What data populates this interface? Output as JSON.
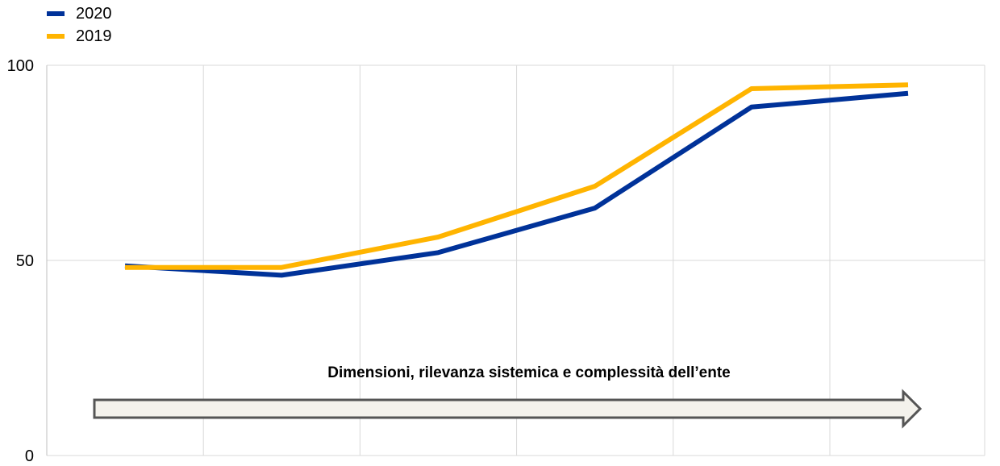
{
  "chart_data": {
    "type": "line",
    "x": [
      1,
      2,
      3,
      4,
      5,
      6
    ],
    "series": [
      {
        "name": "2020",
        "color": "#003299",
        "values": [
          48.6,
          46.2,
          52.0,
          63.4,
          89.3,
          92.8
        ]
      },
      {
        "name": "2019",
        "color": "#FFB400",
        "values": [
          48.2,
          48.2,
          56.0,
          69.0,
          94.0,
          95.0
        ]
      }
    ],
    "ylim": [
      0,
      100
    ],
    "y_ticks": [
      0,
      50,
      100
    ],
    "grid": true,
    "legend_position": "top-left",
    "annotation": {
      "text": "Dimensioni, rilevanza sistemica e complessità dell’ente",
      "arrow": "right"
    }
  }
}
